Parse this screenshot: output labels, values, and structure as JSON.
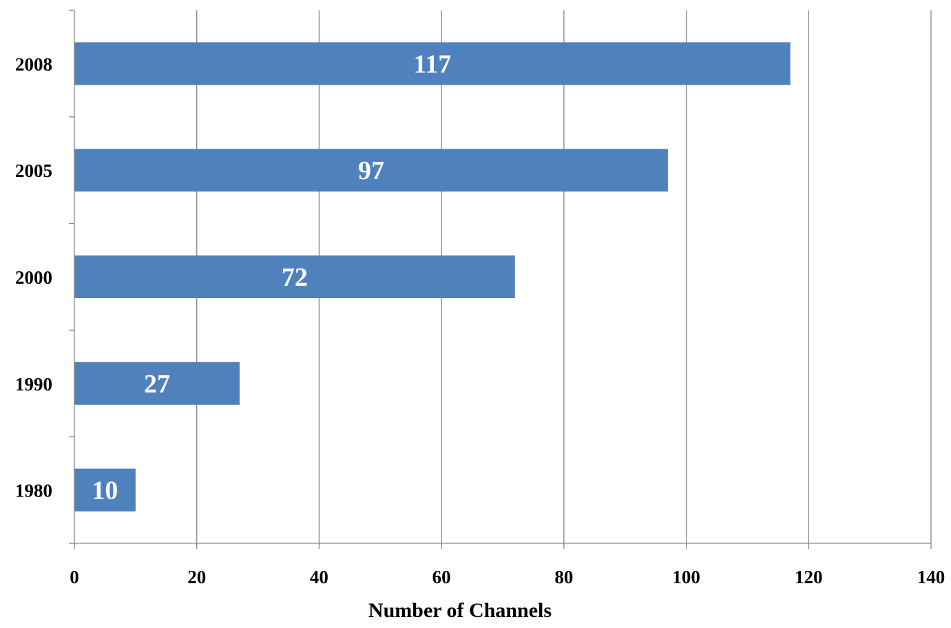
{
  "chart_data": {
    "type": "bar",
    "orientation": "horizontal",
    "categories": [
      "2008",
      "2005",
      "2000",
      "1990",
      "1980"
    ],
    "values": [
      117,
      97,
      72,
      27,
      10
    ],
    "data_labels": [
      "117",
      "97",
      "72",
      "27",
      "10"
    ],
    "title": "",
    "xlabel": "Number of Channels",
    "ylabel": "",
    "xlim": [
      0,
      140
    ],
    "x_ticks": [
      0,
      20,
      40,
      60,
      80,
      100,
      120,
      140
    ],
    "x_tick_labels": [
      "0",
      "20",
      "40",
      "60",
      "80",
      "100",
      "120",
      "140"
    ],
    "grid": "vertical",
    "legend": "none",
    "colors": {
      "bar": "#4f81bd",
      "grid": "#868686",
      "axis": "#868686",
      "data_label": "#ffffff",
      "text": "#000000"
    }
  }
}
